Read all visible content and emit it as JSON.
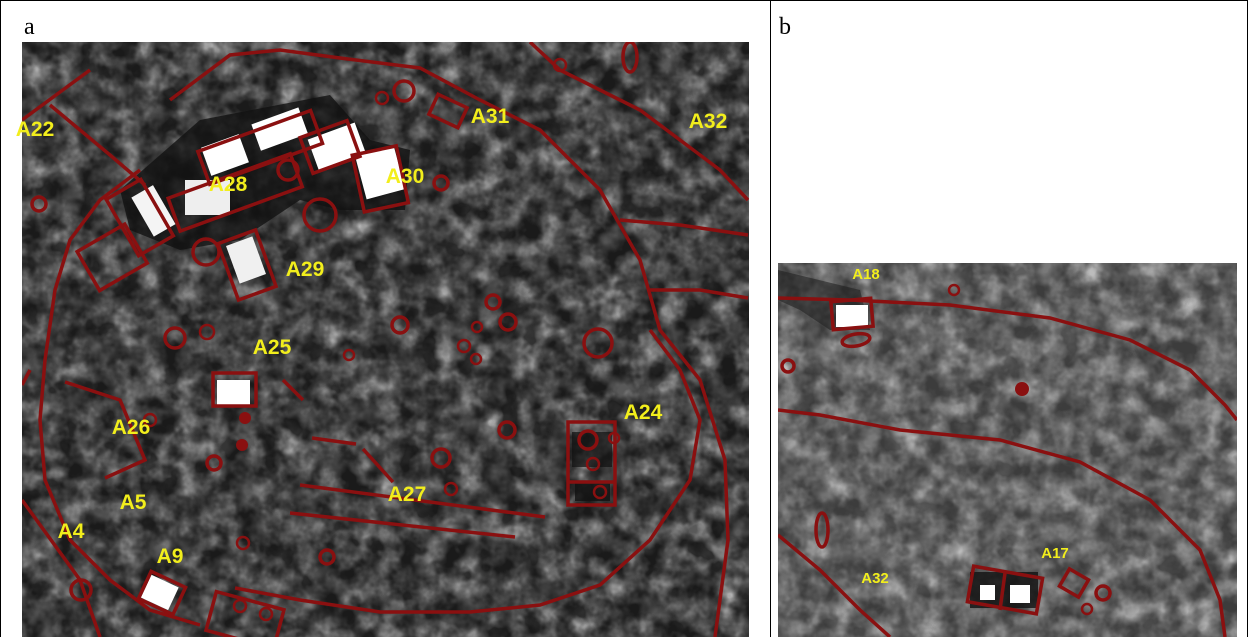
{
  "panels": [
    {
      "label": "a",
      "annotations": [
        "A22",
        "A31",
        "A32",
        "A28",
        "A30",
        "A29",
        "A25",
        "A24",
        "A26",
        "A5",
        "A27",
        "A4",
        "A9"
      ]
    },
    {
      "label": "b",
      "annotations": [
        "A18",
        "A17",
        "A32"
      ]
    }
  ]
}
